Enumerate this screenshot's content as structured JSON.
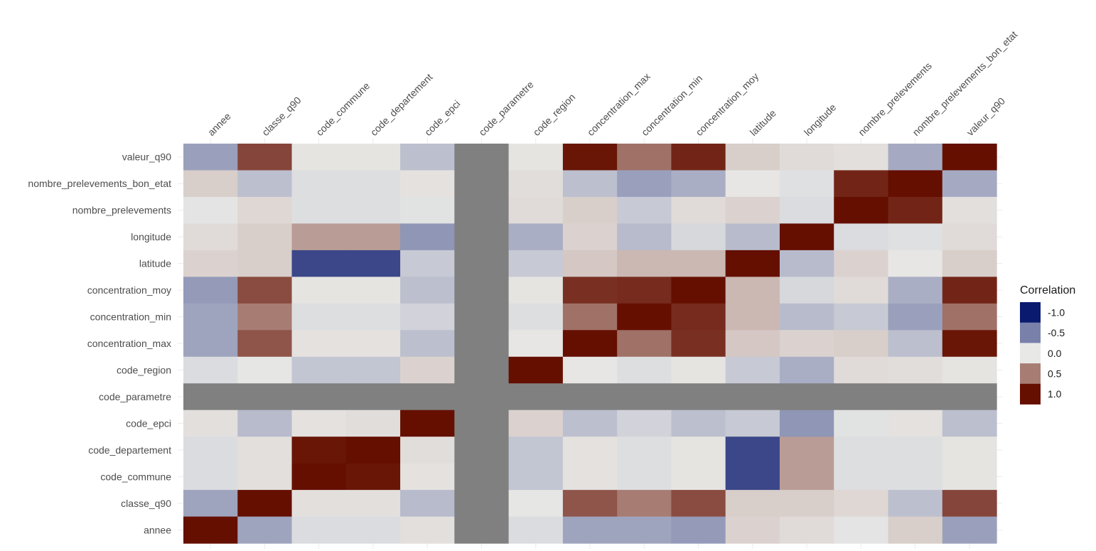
{
  "chart_data": {
    "type": "heatmap",
    "title": "",
    "xlabel": "",
    "ylabel": "",
    "x_categories": [
      "annee",
      "classe_q90",
      "code_commune",
      "code_departement",
      "code_epci",
      "code_parametre",
      "code_region",
      "concentration_max",
      "concentration_min",
      "concentration_moy",
      "latitude",
      "longitude",
      "nombre_prelevements",
      "nombre_prelevements_bon_etat",
      "valeur_q90"
    ],
    "y_categories_bottom_to_top": [
      "annee",
      "classe_q90",
      "code_commune",
      "code_departement",
      "code_epci",
      "code_parametre",
      "code_region",
      "concentration_max",
      "concentration_min",
      "concentration_moy",
      "latitude",
      "longitude",
      "nombre_prelevements",
      "nombre_prelevements_bon_etat",
      "valeur_q90"
    ],
    "matrix_rows_top_to_bottom": [
      {
        "row": "valeur_q90",
        "values": [
          -0.35,
          0.75,
          0.02,
          0.02,
          -0.2,
          null,
          0.02,
          0.97,
          0.55,
          0.9,
          0.12,
          0.06,
          0.04,
          -0.3,
          1.0
        ]
      },
      {
        "row": "nombre_prelevements_bon_etat",
        "values": [
          0.12,
          -0.2,
          -0.05,
          -0.05,
          0.03,
          null,
          0.05,
          -0.2,
          -0.35,
          -0.28,
          0.01,
          -0.04,
          0.9,
          1.0,
          -0.3
        ]
      },
      {
        "row": "nombre_prelevements",
        "values": [
          -0.02,
          0.08,
          -0.05,
          -0.05,
          -0.03,
          null,
          0.06,
          0.12,
          -0.15,
          0.06,
          0.1,
          -0.06,
          1.0,
          0.9,
          0.04
        ]
      },
      {
        "row": "longitude",
        "values": [
          0.06,
          0.12,
          0.35,
          0.35,
          -0.4,
          null,
          -0.28,
          0.1,
          -0.22,
          -0.08,
          -0.22,
          1.0,
          -0.06,
          -0.04,
          0.06
        ]
      },
      {
        "row": "latitude",
        "values": [
          0.1,
          0.12,
          -0.78,
          -0.78,
          -0.15,
          null,
          -0.15,
          0.15,
          0.22,
          0.22,
          1.0,
          -0.22,
          0.1,
          0.01,
          0.12
        ]
      },
      {
        "row": "concentration_moy",
        "values": [
          -0.38,
          0.72,
          0.02,
          0.02,
          -0.2,
          null,
          0.02,
          0.85,
          0.87,
          1.0,
          0.22,
          -0.08,
          0.06,
          -0.28,
          0.9
        ]
      },
      {
        "row": "concentration_min",
        "values": [
          -0.33,
          0.5,
          -0.05,
          -0.05,
          -0.1,
          null,
          -0.05,
          0.55,
          1.0,
          0.87,
          0.22,
          -0.22,
          -0.15,
          -0.35,
          0.55
        ]
      },
      {
        "row": "concentration_max",
        "values": [
          -0.33,
          0.68,
          0.03,
          0.03,
          -0.2,
          null,
          0.01,
          1.0,
          0.55,
          0.85,
          0.15,
          0.1,
          0.12,
          -0.2,
          0.97
        ]
      },
      {
        "row": "code_region",
        "values": [
          -0.06,
          -0.01,
          -0.17,
          -0.17,
          0.1,
          null,
          1.0,
          0.01,
          -0.05,
          0.02,
          -0.15,
          -0.28,
          0.06,
          0.05,
          0.02
        ]
      },
      {
        "row": "code_parametre",
        "values": [
          null,
          null,
          null,
          null,
          null,
          null,
          null,
          null,
          null,
          null,
          null,
          null,
          null,
          null,
          null
        ]
      },
      {
        "row": "code_epci",
        "values": [
          0.04,
          -0.22,
          0.03,
          0.05,
          1.0,
          null,
          0.1,
          -0.2,
          -0.1,
          -0.2,
          -0.15,
          -0.4,
          -0.03,
          0.03,
          -0.2
        ]
      },
      {
        "row": "code_departement",
        "values": [
          -0.06,
          0.04,
          0.97,
          1.0,
          0.05,
          null,
          -0.17,
          0.03,
          -0.05,
          0.02,
          -0.78,
          0.35,
          -0.05,
          -0.05,
          0.02
        ]
      },
      {
        "row": "code_commune",
        "values": [
          -0.06,
          0.04,
          1.0,
          0.97,
          0.03,
          null,
          -0.17,
          0.03,
          -0.05,
          0.02,
          -0.78,
          0.35,
          -0.05,
          -0.05,
          0.02
        ]
      },
      {
        "row": "classe_q90",
        "values": [
          -0.33,
          1.0,
          0.04,
          0.04,
          -0.22,
          null,
          -0.01,
          0.68,
          0.5,
          0.72,
          0.12,
          0.12,
          0.08,
          -0.2,
          0.75
        ]
      },
      {
        "row": "annee",
        "values": [
          1.0,
          -0.33,
          -0.06,
          -0.06,
          0.04,
          null,
          -0.06,
          -0.33,
          -0.33,
          -0.38,
          0.1,
          0.06,
          -0.02,
          0.12,
          -0.35
        ]
      }
    ],
    "na_color": "#808080",
    "color_scale": {
      "low": "#0a1a6e",
      "mid": "#e8e8e6",
      "high": "#650f00",
      "limits": [
        -1,
        1
      ]
    },
    "legend": {
      "title": "Correlation",
      "position": "right",
      "breaks": [
        -1.0,
        -0.5,
        0.0,
        0.5,
        1.0
      ],
      "labels": [
        "-1.0",
        "-0.5",
        "0.0",
        "0.5",
        "1.0"
      ]
    },
    "grid": true
  }
}
